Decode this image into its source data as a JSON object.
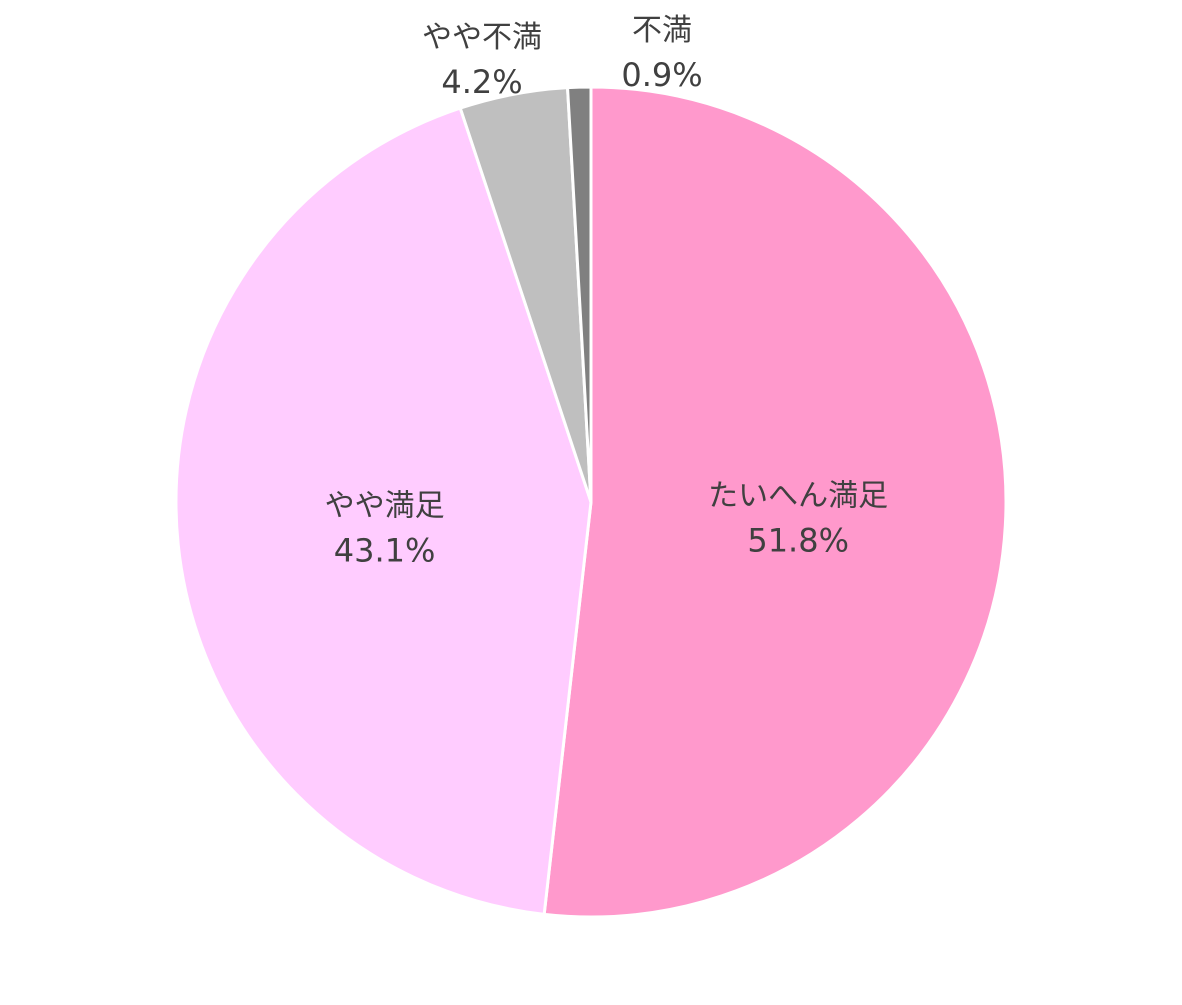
{
  "chart_data": {
    "type": "pie",
    "start_angle": "12 o'clock",
    "direction": "clockwise",
    "slices": [
      {
        "label": "たいへん満足",
        "value": 51.8,
        "value_label": "51.8%",
        "color": "#ff99cc"
      },
      {
        "label": "やや満足",
        "value": 43.1,
        "value_label": "43.1%",
        "color": "#ffccff"
      },
      {
        "label": "やや不満",
        "value": 4.2,
        "value_label": "4.2%",
        "color": "#bfbfbf"
      },
      {
        "label": "不満",
        "value": 0.9,
        "value_label": "0.9%",
        "color": "#808080"
      }
    ]
  }
}
